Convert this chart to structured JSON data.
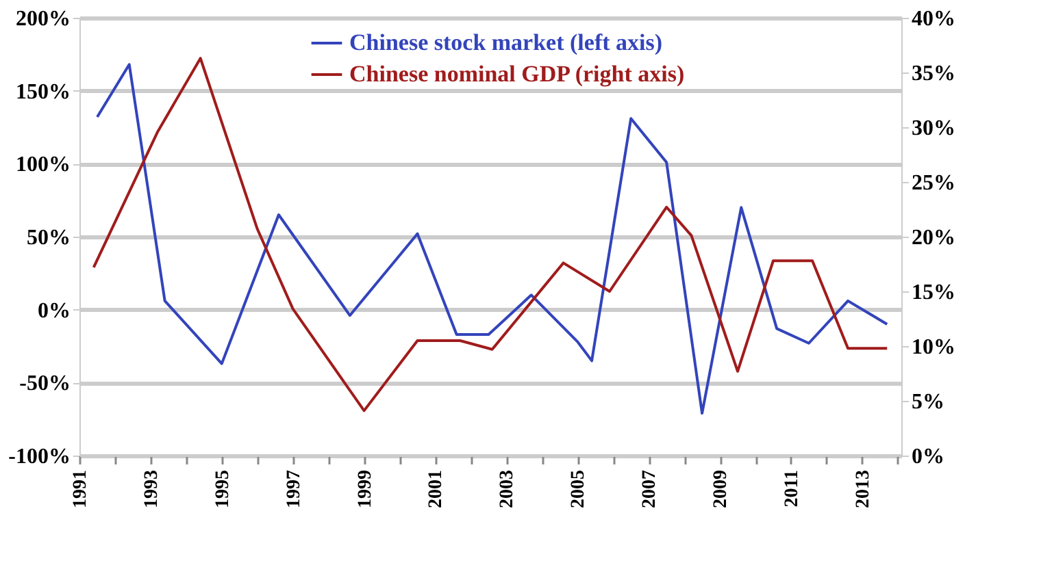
{
  "chart_data": {
    "type": "line",
    "xlim": [
      1991,
      2014.1
    ],
    "xticks": [
      1991,
      {
        "value": 1992,
        "label": null
      },
      1993,
      {
        "value": 1994,
        "label": null
      },
      1995,
      {
        "value": 1996,
        "label": null
      },
      1997,
      {
        "value": 1998,
        "label": null
      },
      1999,
      {
        "value": 2000,
        "label": null
      },
      2001,
      {
        "value": 2002,
        "label": null
      },
      2003,
      {
        "value": 2004,
        "label": null
      },
      2005,
      {
        "value": 2006,
        "label": null
      },
      2007,
      {
        "value": 2008,
        "label": null
      },
      2009,
      {
        "value": 2010,
        "label": null
      },
      2011,
      {
        "value": 2012,
        "label": null
      },
      2013,
      {
        "value": 2014,
        "label": null
      }
    ],
    "ylim": [
      -100,
      200
    ],
    "yticks": [
      {
        "value": -100,
        "label": "-100%"
      },
      {
        "value": -50,
        "label": "-50%"
      },
      {
        "value": 0,
        "label": "0%"
      },
      {
        "value": 50,
        "label": "50%"
      },
      {
        "value": 100,
        "label": "100%"
      },
      {
        "value": 150,
        "label": "150%"
      },
      {
        "value": 200,
        "label": "200%"
      }
    ],
    "y2lim": [
      0,
      40
    ],
    "y2ticks": [
      {
        "value": 0,
        "label": "0%"
      },
      {
        "value": 5,
        "label": "5%"
      },
      {
        "value": 10,
        "label": "10%"
      },
      {
        "value": 15,
        "label": "15%"
      },
      {
        "value": 20,
        "label": "20%"
      },
      {
        "value": 25,
        "label": "25%"
      },
      {
        "value": 30,
        "label": "30%"
      },
      {
        "value": 35,
        "label": "35%"
      },
      {
        "value": 40,
        "label": "40%"
      }
    ],
    "grid": "y",
    "legend": "top",
    "line_style": "solid",
    "series": [
      {
        "name": "Chinese stock market (left axis)",
        "color": "#3344bb",
        "x": [
          1991.5,
          1992.4,
          1993.4,
          1995.0,
          1996.6,
          1998.6,
          2000.5,
          2001.6,
          2002.5,
          2003.7,
          2005.0,
          2005.4,
          2006.5,
          2007.5,
          2008.5,
          2009.6,
          2010.6,
          2011.5,
          2012.6,
          2013.7
        ],
        "values": [
          132,
          168,
          6,
          -37,
          65,
          -4,
          52,
          -17,
          -17,
          10,
          -22,
          -35,
          131,
          101,
          -71,
          70,
          -13,
          -23,
          6,
          -10
        ]
      },
      {
        "name": "Chinese nominal GDP (right axis)",
        "color": "#a01c1c",
        "axis": "y2",
        "x": [
          1991.4,
          1993.2,
          1994.4,
          1996.0,
          1997.0,
          1999.0,
          2000.5,
          2001.7,
          2002.6,
          2004.6,
          2005.9,
          2007.5,
          2008.2,
          2009.5,
          2010.5,
          2011.6,
          2012.6,
          2013.7
        ],
        "values": [
          17.2,
          29.6,
          36.3,
          20.7,
          13.4,
          4.1,
          10.5,
          10.5,
          9.7,
          17.6,
          15.0,
          22.7,
          20.1,
          7.7,
          17.8,
          17.8,
          9.8,
          9.8
        ]
      }
    ]
  }
}
